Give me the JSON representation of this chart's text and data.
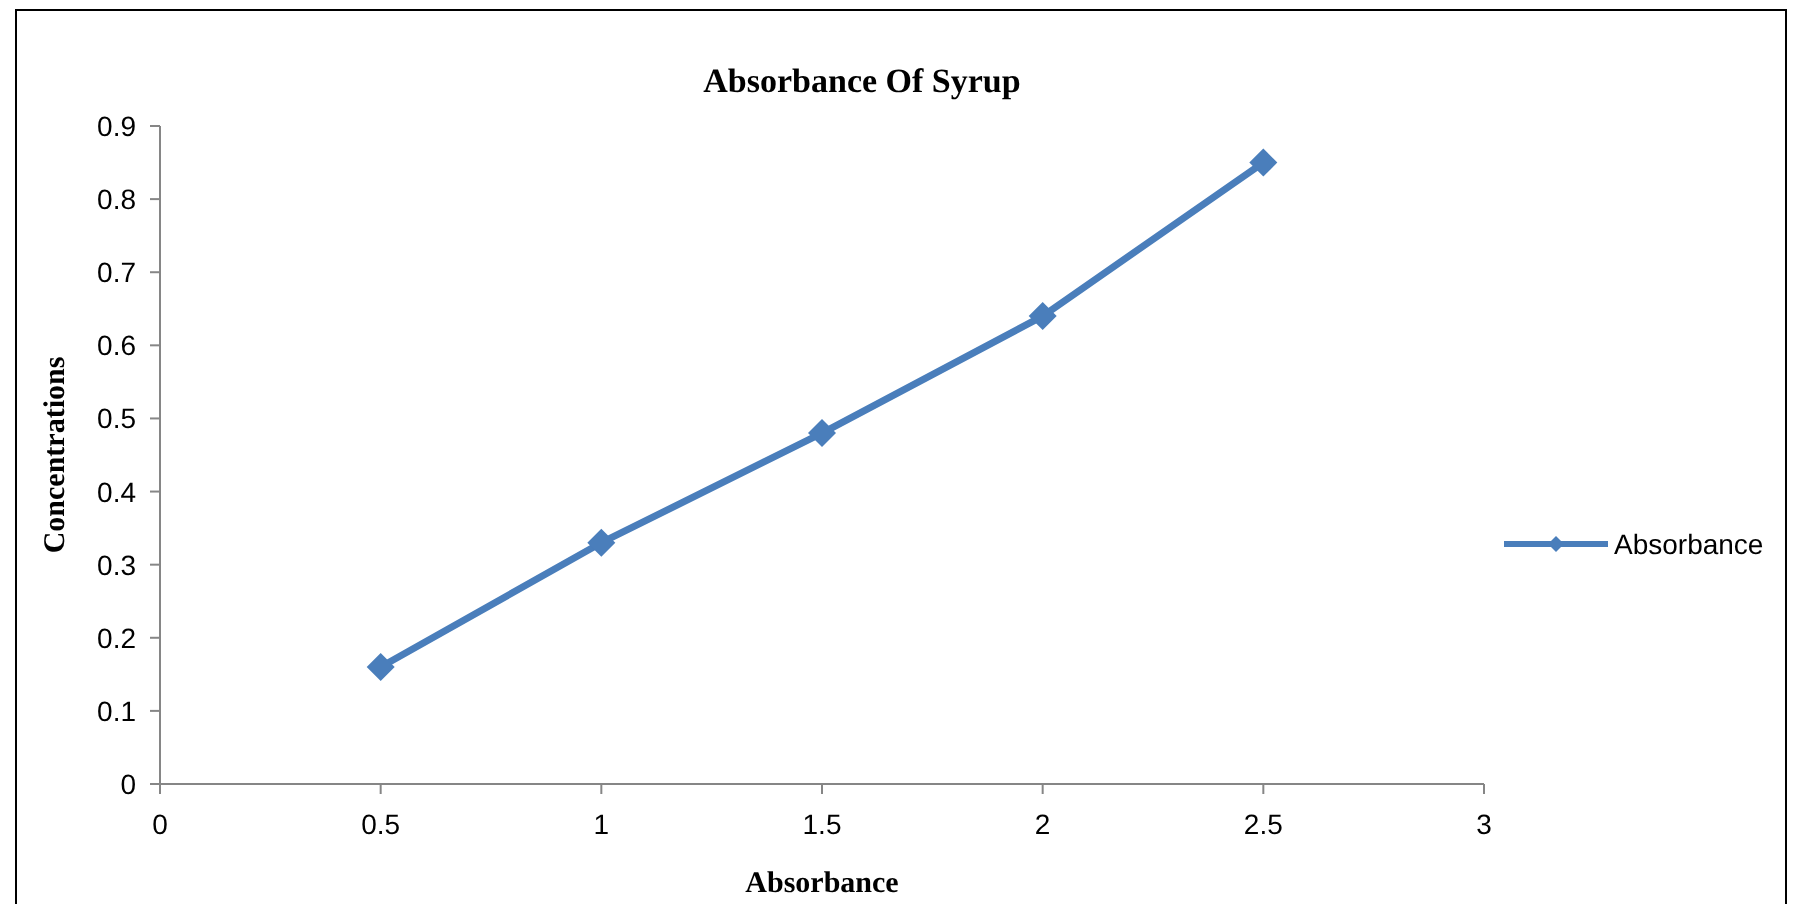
{
  "chart_data": {
    "type": "line",
    "title": "Absorbance Of Syrup",
    "xlabel": "Absorbance",
    "ylabel": "Concentrations",
    "x": [
      0.5,
      1,
      1.5,
      2,
      2.5
    ],
    "series": [
      {
        "name": "Absorbance",
        "color": "#4a7ebb",
        "values": [
          0.16,
          0.33,
          0.48,
          0.64,
          0.85
        ]
      }
    ],
    "xlim": [
      0,
      3
    ],
    "xticks": [
      0,
      0.5,
      1,
      1.5,
      2,
      2.5,
      3
    ],
    "ylim": [
      0,
      0.9
    ],
    "yticks": [
      0,
      0.1,
      0.2,
      0.3,
      0.4,
      0.5,
      0.6,
      0.7,
      0.8,
      0.9
    ],
    "grid": false,
    "legend": "right",
    "marker": "diamond",
    "line_style": "solid"
  }
}
